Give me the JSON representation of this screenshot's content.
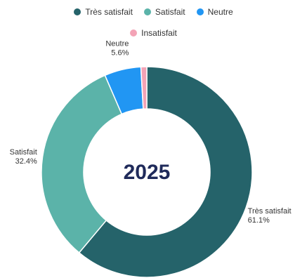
{
  "chart_data": {
    "type": "pie",
    "center_label": "2025",
    "categories": [
      "Très satisfait",
      "Satisfait",
      "Neutre",
      "Insatisfait"
    ],
    "values": [
      61.1,
      32.4,
      5.6,
      0.9
    ],
    "value_labels": [
      "61.1%",
      "32.4%",
      "5.6%",
      ""
    ],
    "colors": [
      "#25636a",
      "#5bb3a9",
      "#2196f3",
      "#f3a3b6"
    ],
    "legend_position": "top"
  }
}
